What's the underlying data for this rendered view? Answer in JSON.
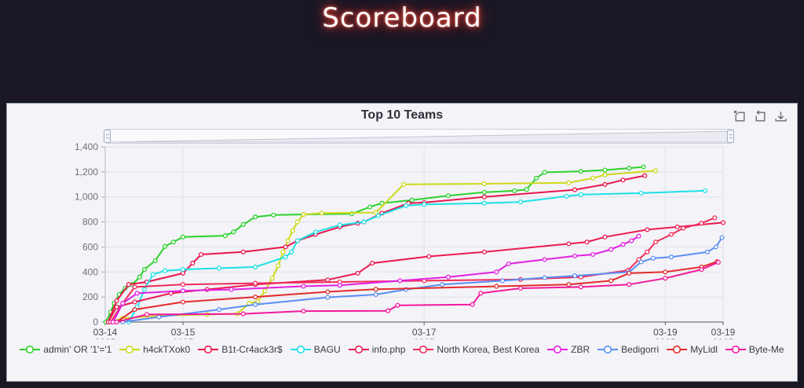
{
  "page": {
    "title": "Scoreboard"
  },
  "panel": {
    "title": "Top 10 Teams",
    "toolbar": {
      "icons": [
        "data-zoom-icon",
        "restore-icon",
        "save-image-icon"
      ]
    },
    "data_zoom_slider": {
      "full_range_selected": true
    }
  },
  "colors": {
    "background": "#191724",
    "panel_background": "#f4f3f8",
    "title_glow": "#e03a2f",
    "grid_line": "#e2e2ea",
    "axis_line": "#55565f",
    "axis_label": "#6e7079"
  },
  "chart_data": {
    "type": "line",
    "title": "Top 10 Teams",
    "xlabel": "",
    "ylabel": "",
    "grid": true,
    "legend_position": "bottom",
    "x_unit": "days since 2025-03-14 00:00 (time axis, estimated)",
    "x_range": [
      0.355,
      5.48
    ],
    "x_ticks": [
      {
        "t": 0.355,
        "label": "03-14",
        "sub": "2025"
      },
      {
        "t": 1.0,
        "label": "03-15",
        "sub": "2025"
      },
      {
        "t": 3.0,
        "label": "03-17",
        "sub": "2025"
      },
      {
        "t": 5.0,
        "label": "03-19",
        "sub": "2025"
      },
      {
        "t": 5.48,
        "label": "03-19",
        "sub": "2025"
      }
    ],
    "y_range": [
      0,
      1400
    ],
    "y_ticks": [
      {
        "v": 0,
        "label": "0"
      },
      {
        "v": 200,
        "label": "200"
      },
      {
        "v": 400,
        "label": "400"
      },
      {
        "v": 600,
        "label": "600"
      },
      {
        "v": 800,
        "label": "800"
      },
      {
        "v": 1000,
        "label": "1,000"
      },
      {
        "v": 1200,
        "label": "1,200"
      },
      {
        "v": 1400,
        "label": "1,400"
      }
    ],
    "series": [
      {
        "name": "admin' OR '1'='1",
        "color": "#2bd22b",
        "points": [
          [
            0.36,
            0
          ],
          [
            0.4,
            80
          ],
          [
            0.43,
            150
          ],
          [
            0.47,
            220
          ],
          [
            0.52,
            270
          ],
          [
            0.58,
            300
          ],
          [
            0.64,
            360
          ],
          [
            0.68,
            420
          ],
          [
            0.77,
            490
          ],
          [
            0.85,
            604
          ],
          [
            0.92,
            640
          ],
          [
            1.0,
            680
          ],
          [
            1.35,
            690
          ],
          [
            1.42,
            720
          ],
          [
            1.5,
            780
          ],
          [
            1.6,
            840
          ],
          [
            1.75,
            855
          ],
          [
            2.0,
            860
          ],
          [
            2.4,
            865
          ],
          [
            2.55,
            920
          ],
          [
            2.65,
            950
          ],
          [
            2.9,
            975
          ],
          [
            3.2,
            1010
          ],
          [
            3.5,
            1037
          ],
          [
            3.75,
            1049
          ],
          [
            3.85,
            1060
          ],
          [
            3.93,
            1150
          ],
          [
            4.0,
            1196
          ],
          [
            4.3,
            1205
          ],
          [
            4.5,
            1215
          ],
          [
            4.7,
            1230
          ],
          [
            4.82,
            1240
          ]
        ]
      },
      {
        "name": "h4ckTXok0",
        "color": "#ccd918",
        "points": [
          [
            0.4,
            0
          ],
          [
            0.5,
            30
          ],
          [
            0.8,
            50
          ],
          [
            1.2,
            60
          ],
          [
            1.45,
            65
          ],
          [
            1.55,
            150
          ],
          [
            1.62,
            165
          ],
          [
            1.68,
            250
          ],
          [
            1.74,
            350
          ],
          [
            1.79,
            450
          ],
          [
            1.83,
            560
          ],
          [
            1.87,
            650
          ],
          [
            1.91,
            730
          ],
          [
            1.95,
            800
          ],
          [
            2.0,
            860
          ],
          [
            2.15,
            870
          ],
          [
            2.6,
            875
          ],
          [
            2.83,
            1100
          ],
          [
            3.5,
            1105
          ],
          [
            4.2,
            1113
          ],
          [
            4.4,
            1150
          ],
          [
            4.5,
            1177
          ],
          [
            4.92,
            1210
          ]
        ]
      },
      {
        "name": "B1t-Cr4ack3r$",
        "color": "#e8174b",
        "points": [
          [
            0.38,
            0
          ],
          [
            0.45,
            170
          ],
          [
            0.55,
            300
          ],
          [
            0.7,
            320
          ],
          [
            1.0,
            390
          ],
          [
            1.08,
            470
          ],
          [
            1.15,
            540
          ],
          [
            1.5,
            560
          ],
          [
            1.85,
            600
          ],
          [
            1.95,
            650
          ],
          [
            2.1,
            700
          ],
          [
            2.3,
            760
          ],
          [
            2.45,
            790
          ],
          [
            2.5,
            800
          ],
          [
            2.65,
            870
          ],
          [
            2.87,
            950
          ],
          [
            3.0,
            955
          ],
          [
            3.5,
            1000
          ],
          [
            4.25,
            1057
          ],
          [
            4.5,
            1100
          ],
          [
            4.65,
            1135
          ],
          [
            4.83,
            1170
          ]
        ]
      },
      {
        "name": "BAGU",
        "color": "#1de0e6",
        "points": [
          [
            0.55,
            0
          ],
          [
            0.62,
            120
          ],
          [
            0.68,
            260
          ],
          [
            0.75,
            380
          ],
          [
            0.85,
            410
          ],
          [
            1.0,
            420
          ],
          [
            1.3,
            430
          ],
          [
            1.6,
            440
          ],
          [
            1.85,
            520
          ],
          [
            1.9,
            560
          ],
          [
            1.95,
            650
          ],
          [
            2.1,
            720
          ],
          [
            2.3,
            775
          ],
          [
            2.5,
            800
          ],
          [
            2.62,
            850
          ],
          [
            2.85,
            930
          ],
          [
            3.0,
            940
          ],
          [
            3.5,
            950
          ],
          [
            3.8,
            960
          ],
          [
            4.18,
            1005
          ],
          [
            4.3,
            1018
          ],
          [
            4.8,
            1030
          ],
          [
            5.33,
            1050
          ]
        ]
      },
      {
        "name": "info.php",
        "color": "#ea1c50",
        "points": [
          [
            0.38,
            0
          ],
          [
            0.45,
            120
          ],
          [
            0.6,
            160
          ],
          [
            0.9,
            230
          ],
          [
            1.2,
            260
          ],
          [
            1.6,
            300
          ],
          [
            2.2,
            337
          ],
          [
            2.45,
            390
          ],
          [
            2.57,
            470
          ],
          [
            3.04,
            524
          ],
          [
            3.5,
            560
          ],
          [
            4.2,
            625
          ],
          [
            4.35,
            640
          ],
          [
            4.5,
            680
          ],
          [
            4.85,
            738
          ],
          [
            5.1,
            760
          ],
          [
            5.48,
            795
          ]
        ]
      },
      {
        "name": "North Korea, Best Korea",
        "color": "#ef2d59",
        "points": [
          [
            0.4,
            0
          ],
          [
            0.5,
            150
          ],
          [
            0.6,
            280
          ],
          [
            1.0,
            300
          ],
          [
            1.6,
            310
          ],
          [
            2.3,
            320
          ],
          [
            3.0,
            330
          ],
          [
            3.8,
            340
          ],
          [
            4.3,
            360
          ],
          [
            4.69,
            413
          ],
          [
            4.78,
            500
          ],
          [
            4.85,
            560
          ],
          [
            4.92,
            640
          ],
          [
            5.05,
            700
          ],
          [
            5.15,
            750
          ],
          [
            5.3,
            790
          ],
          [
            5.41,
            833
          ]
        ]
      },
      {
        "name": "ZBR",
        "color": "#e121e1",
        "points": [
          [
            0.42,
            0
          ],
          [
            0.5,
            150
          ],
          [
            0.62,
            230
          ],
          [
            1.0,
            250
          ],
          [
            1.4,
            260
          ],
          [
            2.0,
            286
          ],
          [
            2.3,
            293
          ],
          [
            2.8,
            330
          ],
          [
            3.2,
            360
          ],
          [
            3.6,
            400
          ],
          [
            3.7,
            465
          ],
          [
            4.0,
            500
          ],
          [
            4.25,
            528
          ],
          [
            4.4,
            540
          ],
          [
            4.55,
            580
          ],
          [
            4.65,
            620
          ],
          [
            4.72,
            650
          ],
          [
            4.78,
            687
          ]
        ]
      },
      {
        "name": "Bedigorri",
        "color": "#5a8ff2",
        "points": [
          [
            0.5,
            0
          ],
          [
            0.8,
            40
          ],
          [
            1.3,
            100
          ],
          [
            1.6,
            140
          ],
          [
            2.2,
            197
          ],
          [
            2.6,
            220
          ],
          [
            2.85,
            260
          ],
          [
            3.15,
            300
          ],
          [
            3.65,
            330
          ],
          [
            4.0,
            355
          ],
          [
            4.25,
            370
          ],
          [
            4.7,
            400
          ],
          [
            4.8,
            480
          ],
          [
            4.9,
            510
          ],
          [
            5.05,
            520
          ],
          [
            5.35,
            560
          ],
          [
            5.42,
            600
          ],
          [
            5.47,
            675
          ]
        ]
      },
      {
        "name": "MyLidl",
        "color": "#e22b2b",
        "points": [
          [
            0.45,
            0
          ],
          [
            0.6,
            100
          ],
          [
            1.0,
            160
          ],
          [
            1.6,
            200
          ],
          [
            2.2,
            242
          ],
          [
            2.6,
            262
          ],
          [
            3.6,
            285
          ],
          [
            4.2,
            300
          ],
          [
            4.55,
            330
          ],
          [
            4.7,
            390
          ],
          [
            5.0,
            400
          ],
          [
            5.3,
            440
          ],
          [
            5.43,
            483
          ]
        ]
      },
      {
        "name": "Byte-Me",
        "color": "#f2189b",
        "points": [
          [
            0.45,
            0
          ],
          [
            0.7,
            60
          ],
          [
            1.5,
            65
          ],
          [
            2.0,
            87
          ],
          [
            2.7,
            90
          ],
          [
            2.78,
            133
          ],
          [
            3.4,
            140
          ],
          [
            3.47,
            230
          ],
          [
            3.8,
            270
          ],
          [
            4.3,
            280
          ],
          [
            4.7,
            300
          ],
          [
            5.0,
            350
          ],
          [
            5.3,
            420
          ],
          [
            5.44,
            477
          ]
        ]
      }
    ]
  }
}
